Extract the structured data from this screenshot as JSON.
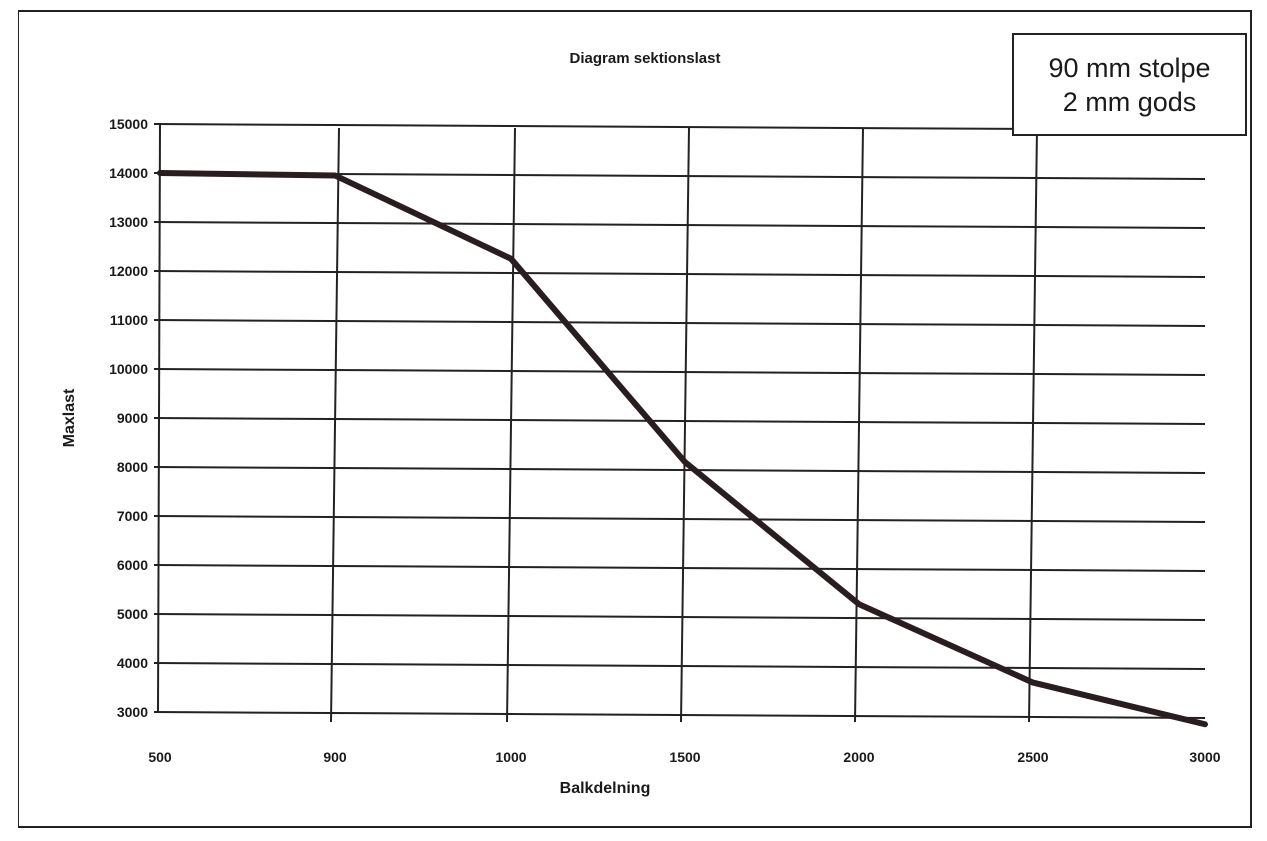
{
  "chart_data": {
    "type": "line",
    "title": "Diagram sektionslast",
    "xlabel": "Balkdelning",
    "ylabel": "Maxlast",
    "categories": [
      "500",
      "900",
      "1000",
      "1500",
      "2000",
      "2500",
      "3000"
    ],
    "series": [
      {
        "values": [
          14000,
          13950,
          12250,
          8100,
          5200,
          3600,
          2750
        ]
      }
    ],
    "ylim": [
      3000,
      15000
    ],
    "yticks": [
      "15000",
      "14000",
      "13000",
      "12000",
      "11000",
      "10000",
      "9000",
      "8000",
      "7000",
      "6000",
      "5000",
      "4000",
      "3000"
    ],
    "grid": true,
    "annotation": [
      "90 mm stolpe",
      "2 mm gods"
    ],
    "colors": {
      "line": "#2a1d1f",
      "grid": "#222222"
    }
  }
}
